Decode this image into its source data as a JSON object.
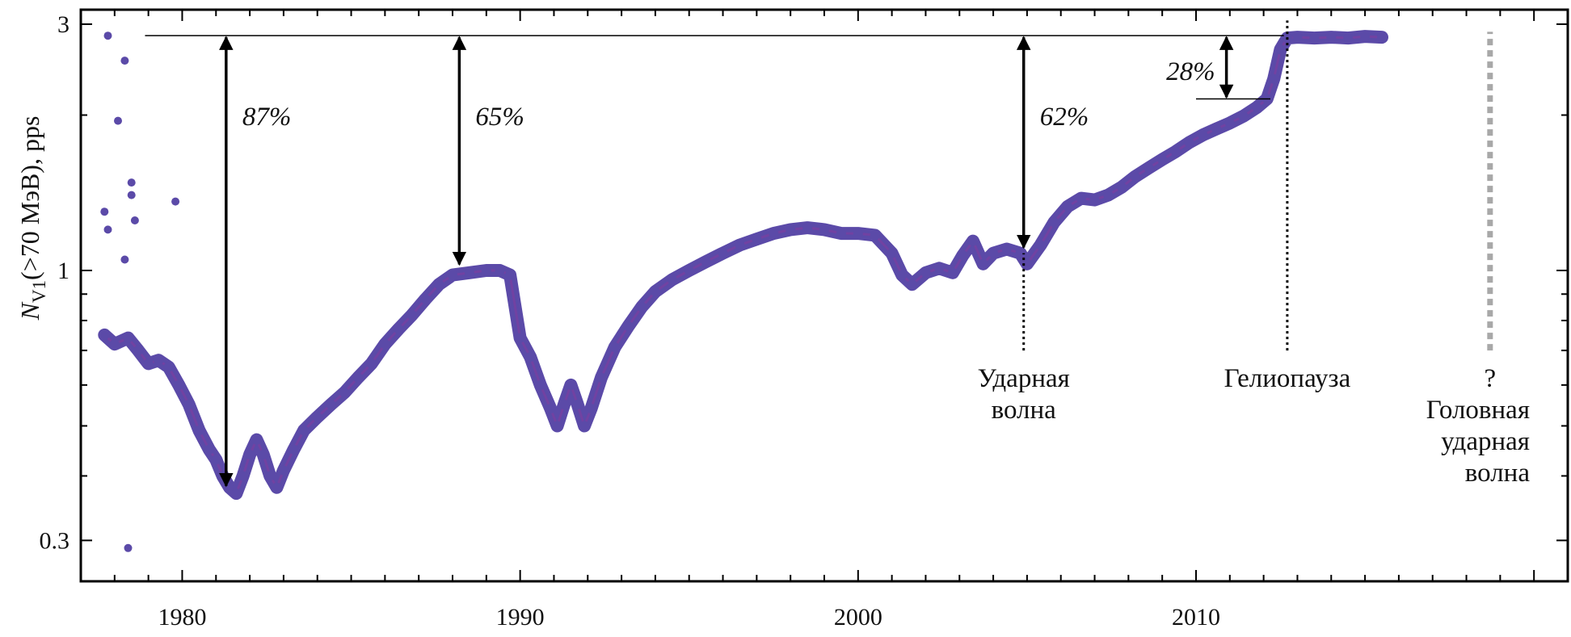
{
  "chart_data": {
    "type": "scatter",
    "title": "",
    "ylabel": {
      "symbol": "N",
      "subscript": "V1",
      "rest": "(>70 МэВ), pps"
    },
    "xlabel": "",
    "y_scale": "log",
    "xlim": [
      1977.0,
      2021.0
    ],
    "ylim": [
      0.25,
      3.2
    ],
    "x_ticks": [
      "1980",
      "1990",
      "2000",
      "2010"
    ],
    "x_tick_values": [
      1980,
      1990,
      2000,
      2010
    ],
    "y_ticks": [
      "0.3",
      "1",
      "3"
    ],
    "y_tick_values": [
      0.3,
      1,
      3
    ],
    "grid": false,
    "legend": "none",
    "series_color": "#5b4aa8",
    "series": [
      {
        "name": "",
        "points": [
          [
            1977.7,
            0.75
          ],
          [
            1978.0,
            0.72
          ],
          [
            1978.4,
            0.74
          ],
          [
            1978.7,
            0.7
          ],
          [
            1979.0,
            0.66
          ],
          [
            1979.3,
            0.67
          ],
          [
            1979.6,
            0.65
          ],
          [
            1979.9,
            0.6
          ],
          [
            1980.2,
            0.55
          ],
          [
            1980.5,
            0.49
          ],
          [
            1980.8,
            0.45
          ],
          [
            1981.0,
            0.43
          ],
          [
            1981.2,
            0.4
          ],
          [
            1981.4,
            0.38
          ],
          [
            1981.6,
            0.37
          ],
          [
            1981.8,
            0.4
          ],
          [
            1982.0,
            0.44
          ],
          [
            1982.2,
            0.47
          ],
          [
            1982.4,
            0.44
          ],
          [
            1982.6,
            0.4
          ],
          [
            1982.8,
            0.38
          ],
          [
            1983.0,
            0.41
          ],
          [
            1983.3,
            0.45
          ],
          [
            1983.6,
            0.49
          ],
          [
            1984.0,
            0.52
          ],
          [
            1984.4,
            0.55
          ],
          [
            1984.8,
            0.58
          ],
          [
            1985.2,
            0.62
          ],
          [
            1985.6,
            0.66
          ],
          [
            1986.0,
            0.72
          ],
          [
            1986.4,
            0.77
          ],
          [
            1986.8,
            0.82
          ],
          [
            1987.2,
            0.88
          ],
          [
            1987.6,
            0.94
          ],
          [
            1988.0,
            0.98
          ],
          [
            1988.5,
            0.99
          ],
          [
            1989.0,
            1.0
          ],
          [
            1989.4,
            1.0
          ],
          [
            1989.7,
            0.98
          ],
          [
            1990.0,
            0.74
          ],
          [
            1990.3,
            0.68
          ],
          [
            1990.6,
            0.6
          ],
          [
            1990.9,
            0.54
          ],
          [
            1991.1,
            0.5
          ],
          [
            1991.3,
            0.55
          ],
          [
            1991.5,
            0.6
          ],
          [
            1991.7,
            0.55
          ],
          [
            1991.9,
            0.5
          ],
          [
            1992.1,
            0.54
          ],
          [
            1992.4,
            0.62
          ],
          [
            1992.8,
            0.71
          ],
          [
            1993.2,
            0.78
          ],
          [
            1993.6,
            0.85
          ],
          [
            1994.0,
            0.91
          ],
          [
            1994.5,
            0.96
          ],
          [
            1995.0,
            1.0
          ],
          [
            1995.5,
            1.04
          ],
          [
            1996.0,
            1.08
          ],
          [
            1996.5,
            1.12
          ],
          [
            1997.0,
            1.15
          ],
          [
            1997.5,
            1.18
          ],
          [
            1998.0,
            1.2
          ],
          [
            1998.5,
            1.21
          ],
          [
            1999.0,
            1.2
          ],
          [
            1999.5,
            1.18
          ],
          [
            2000.0,
            1.18
          ],
          [
            2000.5,
            1.17
          ],
          [
            2001.0,
            1.08
          ],
          [
            2001.3,
            0.98
          ],
          [
            2001.6,
            0.94
          ],
          [
            2002.0,
            0.99
          ],
          [
            2002.4,
            1.01
          ],
          [
            2002.8,
            0.99
          ],
          [
            2003.1,
            1.07
          ],
          [
            2003.4,
            1.14
          ],
          [
            2003.7,
            1.03
          ],
          [
            2004.0,
            1.08
          ],
          [
            2004.4,
            1.1
          ],
          [
            2004.8,
            1.08
          ],
          [
            2005.0,
            1.03
          ],
          [
            2005.4,
            1.12
          ],
          [
            2005.8,
            1.24
          ],
          [
            2006.2,
            1.33
          ],
          [
            2006.6,
            1.38
          ],
          [
            2007.0,
            1.37
          ],
          [
            2007.4,
            1.4
          ],
          [
            2007.8,
            1.45
          ],
          [
            2008.2,
            1.52
          ],
          [
            2008.6,
            1.58
          ],
          [
            2009.0,
            1.64
          ],
          [
            2009.4,
            1.7
          ],
          [
            2009.8,
            1.77
          ],
          [
            2010.2,
            1.83
          ],
          [
            2010.6,
            1.88
          ],
          [
            2011.0,
            1.93
          ],
          [
            2011.4,
            1.99
          ],
          [
            2011.8,
            2.07
          ],
          [
            2012.1,
            2.15
          ],
          [
            2012.3,
            2.35
          ],
          [
            2012.5,
            2.68
          ],
          [
            2012.7,
            2.82
          ],
          [
            2013.0,
            2.83
          ],
          [
            2013.5,
            2.82
          ],
          [
            2014.0,
            2.83
          ],
          [
            2014.5,
            2.82
          ],
          [
            2015.0,
            2.84
          ],
          [
            2015.5,
            2.83
          ]
        ],
        "outliers": [
          [
            1977.8,
            2.85
          ],
          [
            1978.1,
            1.95
          ],
          [
            1978.3,
            2.55
          ],
          [
            1978.5,
            1.48
          ],
          [
            1978.5,
            1.4
          ],
          [
            1978.6,
            1.25
          ],
          [
            1978.3,
            1.05
          ],
          [
            1977.7,
            1.3
          ],
          [
            1977.8,
            1.2
          ],
          [
            1979.8,
            1.36
          ],
          [
            1978.4,
            0.29
          ]
        ]
      }
    ],
    "reference_line": {
      "y": 2.85,
      "x_from": 1978.9,
      "x_to": 2012.6
    },
    "arrows": [
      {
        "x": 1981.3,
        "y_from": 0.38,
        "y_to": 2.85,
        "label": "87%"
      },
      {
        "x": 1988.2,
        "y_from": 1.02,
        "y_to": 2.85,
        "label": "65%"
      },
      {
        "x": 2004.9,
        "y_from": 1.1,
        "y_to": 2.85,
        "label": "62%"
      },
      {
        "x": 2010.9,
        "y_from": 2.15,
        "y_to": 2.85,
        "label": "28%",
        "baseline_from": 2010.0,
        "baseline_to": 2012.2
      }
    ],
    "markers": [
      {
        "x": 2004.9,
        "y_from": 0.7,
        "y_to": 1.08,
        "style": "dotted-black",
        "label_lines": [
          "Ударная",
          "волна"
        ]
      },
      {
        "x": 2012.7,
        "y_from": 0.7,
        "y_to": 3.05,
        "style": "dotted-black",
        "label_lines": [
          "Гелиопауза"
        ]
      },
      {
        "x": 2018.7,
        "y_from": 0.7,
        "y_to": 2.9,
        "style": "dotted-gray",
        "label_lines": [
          "?"
        ],
        "extra_label_lines": [
          "Головная",
          "ударная",
          "волна"
        ]
      }
    ]
  }
}
